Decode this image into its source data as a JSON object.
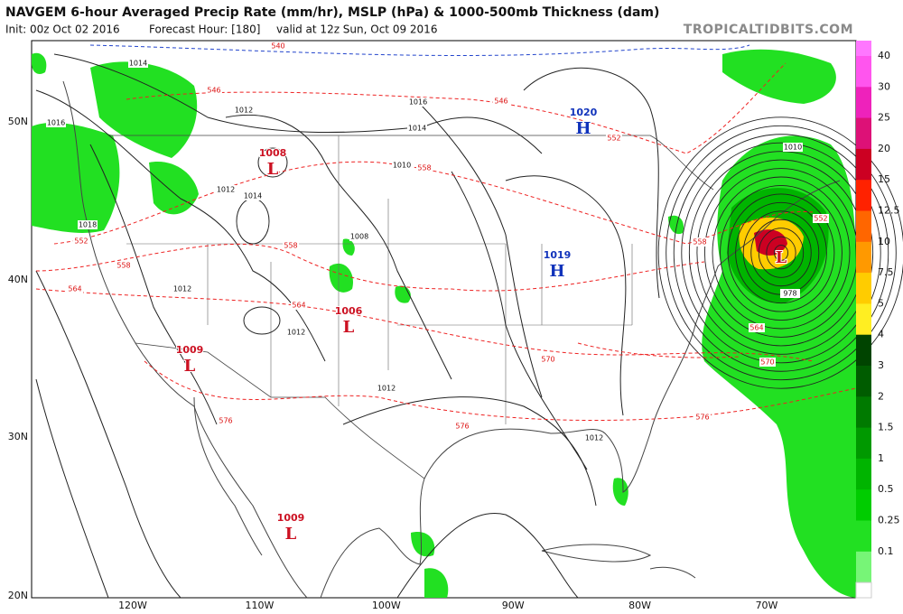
{
  "header": {
    "title": "NAVGEM 6-hour Averaged Precip Rate (mm/hr), MSLP (hPa) & 1000-500mb Thickness (dam)",
    "init": "Init: 00z Oct 02 2016",
    "forecast_hour": "Forecast Hour: [180]",
    "valid": "valid at 12z Sun, Oct 09 2016",
    "site": "TROPICALTIDBITS.COM"
  },
  "legend": [
    {
      "value": 40,
      "color": "#ff55ee"
    },
    {
      "value": 30,
      "color": "#ee22bb"
    },
    {
      "value": 25,
      "color": "#dd1177"
    },
    {
      "value": 20,
      "color": "#cc0022"
    },
    {
      "value": 15,
      "color": "#ff2200"
    },
    {
      "value": 12.5,
      "color": "#ff6600"
    },
    {
      "value": 10,
      "color": "#ff9900"
    },
    {
      "value": 7.5,
      "color": "#ffcc00"
    },
    {
      "value": 5,
      "color": "#ffee22"
    },
    {
      "value": 4,
      "color": "#004400"
    },
    {
      "value": 3,
      "color": "#005c00"
    },
    {
      "value": 2,
      "color": "#007a00"
    },
    {
      "value": 1.5,
      "color": "#009900"
    },
    {
      "value": 1,
      "color": "#00b400"
    },
    {
      "value": 0.5,
      "color": "#00cc00"
    },
    {
      "value": 0.25,
      "color": "#22e022"
    },
    {
      "value": 0.1,
      "color": "#77f577"
    }
  ],
  "top_color": "#ff77ff",
  "lon_labels": [
    "120W",
    "110W",
    "100W",
    "90W",
    "80W",
    "70W"
  ],
  "lat_labels": [
    "50N",
    "40N",
    "30N",
    "20N"
  ],
  "centers": [
    {
      "value": "1008",
      "letter": "L",
      "color": "#cc1122"
    },
    {
      "value": "1020",
      "letter": "H",
      "color": "#1133bb"
    },
    {
      "value": "1019",
      "letter": "H",
      "color": "#1133bb"
    },
    {
      "value": "1006",
      "letter": "L",
      "color": "#cc1122"
    },
    {
      "value": "1009",
      "letter": "L",
      "color": "#cc1122"
    },
    {
      "value": "1009",
      "letter": "L",
      "color": "#cc1122"
    },
    {
      "letter": "L",
      "color": "#cc1122"
    }
  ],
  "isobar_labels": [
    "1014",
    "1012",
    "1016",
    "1012",
    "1014",
    "1018",
    "1012",
    "1012",
    "1008",
    "1010",
    "1014",
    "1016",
    "1012",
    "1012",
    "1010",
    "978"
  ],
  "thickness_labels": [
    "540",
    "546",
    "546",
    "552",
    "558",
    "552",
    "558",
    "558",
    "564",
    "564",
    "570",
    "576",
    "576",
    "576",
    "570",
    "564",
    "558",
    "552"
  ]
}
